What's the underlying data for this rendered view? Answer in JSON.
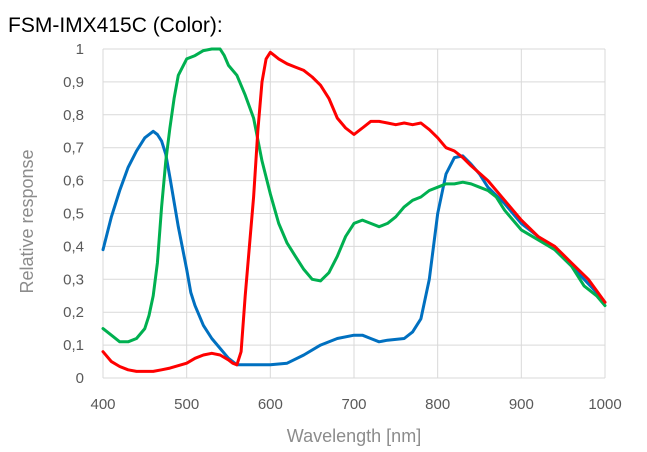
{
  "chart_data": {
    "type": "line",
    "title": "FSM-IMX415C (Color):",
    "xlabel": "Wavelength [nm]",
    "ylabel": "Relative response",
    "xlim": [
      400,
      1000
    ],
    "ylim": [
      0,
      1
    ],
    "x_ticks": [
      400,
      500,
      600,
      700,
      800,
      900,
      1000
    ],
    "y_ticks": [
      0,
      0.1,
      0.2,
      0.3,
      0.4,
      0.5,
      0.6,
      0.7,
      0.8,
      0.9,
      1
    ],
    "x_tick_labels": [
      "400",
      "500",
      "600",
      "700",
      "800",
      "900",
      "1000"
    ],
    "y_tick_labels": [
      "0",
      "0,1",
      "0,2",
      "0,3",
      "0,4",
      "0,5",
      "0,6",
      "0,7",
      "0,8",
      "0,9",
      "1"
    ],
    "grid": true,
    "legend": "none",
    "series": [
      {
        "color": "#0070c0",
        "points": [
          [
            400,
            0.39
          ],
          [
            405,
            0.44
          ],
          [
            410,
            0.49
          ],
          [
            420,
            0.57
          ],
          [
            430,
            0.64
          ],
          [
            440,
            0.69
          ],
          [
            450,
            0.73
          ],
          [
            460,
            0.75
          ],
          [
            465,
            0.74
          ],
          [
            470,
            0.72
          ],
          [
            475,
            0.68
          ],
          [
            480,
            0.61
          ],
          [
            490,
            0.46
          ],
          [
            500,
            0.33
          ],
          [
            505,
            0.26
          ],
          [
            510,
            0.22
          ],
          [
            520,
            0.16
          ],
          [
            530,
            0.12
          ],
          [
            540,
            0.09
          ],
          [
            550,
            0.06
          ],
          [
            555,
            0.05
          ],
          [
            560,
            0.04
          ],
          [
            580,
            0.04
          ],
          [
            600,
            0.04
          ],
          [
            620,
            0.045
          ],
          [
            640,
            0.07
          ],
          [
            660,
            0.1
          ],
          [
            680,
            0.12
          ],
          [
            700,
            0.13
          ],
          [
            710,
            0.13
          ],
          [
            720,
            0.12
          ],
          [
            730,
            0.11
          ],
          [
            740,
            0.115
          ],
          [
            760,
            0.12
          ],
          [
            770,
            0.14
          ],
          [
            780,
            0.18
          ],
          [
            790,
            0.3
          ],
          [
            800,
            0.5
          ],
          [
            810,
            0.62
          ],
          [
            820,
            0.67
          ],
          [
            830,
            0.675
          ],
          [
            840,
            0.65
          ],
          [
            850,
            0.62
          ],
          [
            860,
            0.58
          ],
          [
            880,
            0.53
          ],
          [
            900,
            0.47
          ],
          [
            920,
            0.43
          ],
          [
            940,
            0.39
          ],
          [
            960,
            0.34
          ],
          [
            975,
            0.3
          ],
          [
            990,
            0.26
          ],
          [
            1000,
            0.23
          ]
        ]
      },
      {
        "color": "#00b050",
        "points": [
          [
            400,
            0.15
          ],
          [
            410,
            0.13
          ],
          [
            420,
            0.11
          ],
          [
            430,
            0.11
          ],
          [
            440,
            0.12
          ],
          [
            450,
            0.15
          ],
          [
            455,
            0.19
          ],
          [
            460,
            0.25
          ],
          [
            465,
            0.35
          ],
          [
            470,
            0.52
          ],
          [
            475,
            0.66
          ],
          [
            480,
            0.76
          ],
          [
            485,
            0.85
          ],
          [
            490,
            0.92
          ],
          [
            500,
            0.97
          ],
          [
            510,
            0.98
          ],
          [
            520,
            0.995
          ],
          [
            530,
            1.0
          ],
          [
            540,
            1.0
          ],
          [
            545,
            0.98
          ],
          [
            550,
            0.95
          ],
          [
            560,
            0.92
          ],
          [
            570,
            0.86
          ],
          [
            580,
            0.79
          ],
          [
            590,
            0.66
          ],
          [
            600,
            0.56
          ],
          [
            610,
            0.47
          ],
          [
            620,
            0.41
          ],
          [
            630,
            0.37
          ],
          [
            640,
            0.33
          ],
          [
            650,
            0.3
          ],
          [
            660,
            0.295
          ],
          [
            670,
            0.32
          ],
          [
            680,
            0.37
          ],
          [
            690,
            0.43
          ],
          [
            700,
            0.47
          ],
          [
            710,
            0.48
          ],
          [
            720,
            0.47
          ],
          [
            730,
            0.46
          ],
          [
            740,
            0.47
          ],
          [
            750,
            0.49
          ],
          [
            760,
            0.52
          ],
          [
            770,
            0.54
          ],
          [
            780,
            0.55
          ],
          [
            790,
            0.57
          ],
          [
            800,
            0.58
          ],
          [
            810,
            0.59
          ],
          [
            820,
            0.59
          ],
          [
            830,
            0.595
          ],
          [
            840,
            0.59
          ],
          [
            850,
            0.58
          ],
          [
            860,
            0.57
          ],
          [
            870,
            0.55
          ],
          [
            880,
            0.51
          ],
          [
            890,
            0.48
          ],
          [
            900,
            0.45
          ],
          [
            920,
            0.42
          ],
          [
            940,
            0.39
          ],
          [
            960,
            0.34
          ],
          [
            975,
            0.28
          ],
          [
            990,
            0.25
          ],
          [
            1000,
            0.22
          ]
        ]
      },
      {
        "color": "#ff0000",
        "points": [
          [
            400,
            0.08
          ],
          [
            410,
            0.05
          ],
          [
            420,
            0.035
          ],
          [
            430,
            0.025
          ],
          [
            440,
            0.02
          ],
          [
            450,
            0.02
          ],
          [
            460,
            0.02
          ],
          [
            470,
            0.025
          ],
          [
            480,
            0.03
          ],
          [
            500,
            0.045
          ],
          [
            510,
            0.06
          ],
          [
            520,
            0.07
          ],
          [
            530,
            0.075
          ],
          [
            540,
            0.07
          ],
          [
            550,
            0.055
          ],
          [
            555,
            0.045
          ],
          [
            560,
            0.04
          ],
          [
            565,
            0.08
          ],
          [
            570,
            0.25
          ],
          [
            580,
            0.55
          ],
          [
            585,
            0.75
          ],
          [
            590,
            0.9
          ],
          [
            595,
            0.97
          ],
          [
            600,
            0.99
          ],
          [
            605,
            0.98
          ],
          [
            610,
            0.97
          ],
          [
            620,
            0.955
          ],
          [
            630,
            0.945
          ],
          [
            640,
            0.935
          ],
          [
            650,
            0.915
          ],
          [
            660,
            0.89
          ],
          [
            670,
            0.85
          ],
          [
            680,
            0.79
          ],
          [
            690,
            0.76
          ],
          [
            700,
            0.74
          ],
          [
            710,
            0.76
          ],
          [
            720,
            0.78
          ],
          [
            730,
            0.78
          ],
          [
            740,
            0.775
          ],
          [
            750,
            0.77
          ],
          [
            760,
            0.775
          ],
          [
            770,
            0.77
          ],
          [
            780,
            0.775
          ],
          [
            790,
            0.755
          ],
          [
            800,
            0.73
          ],
          [
            810,
            0.7
          ],
          [
            820,
            0.69
          ],
          [
            830,
            0.67
          ],
          [
            840,
            0.645
          ],
          [
            860,
            0.6
          ],
          [
            880,
            0.54
          ],
          [
            900,
            0.48
          ],
          [
            920,
            0.43
          ],
          [
            940,
            0.4
          ],
          [
            960,
            0.35
          ],
          [
            980,
            0.3
          ],
          [
            1000,
            0.23
          ]
        ]
      }
    ]
  }
}
